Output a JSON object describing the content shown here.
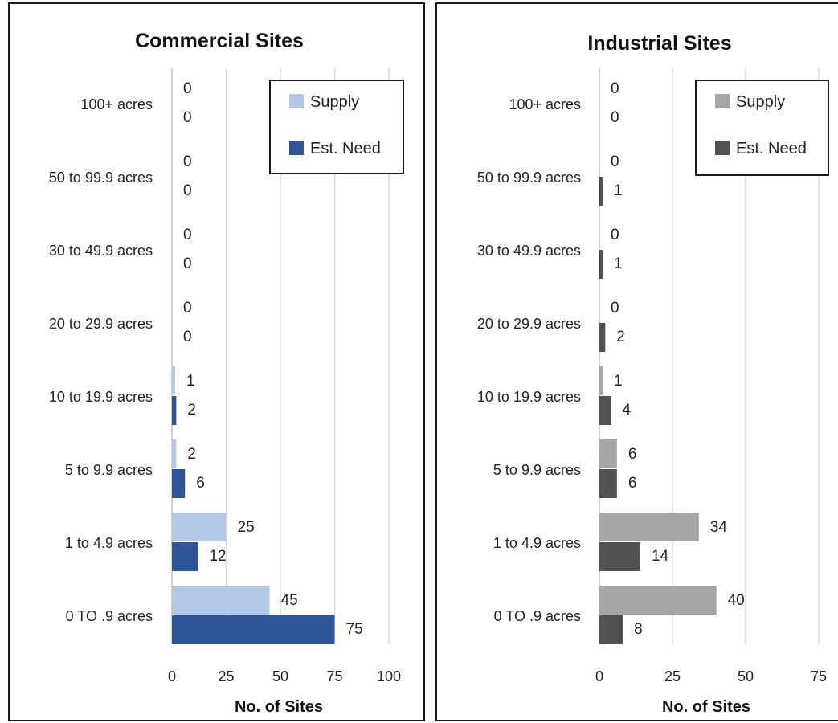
{
  "chart_data": [
    {
      "type": "bar",
      "orientation": "horizontal",
      "title": "Commercial Sites",
      "xlabel": "No. of Sites",
      "ylabel": "",
      "xlim": [
        0,
        100
      ],
      "xticks": [
        0,
        25,
        50,
        75,
        100
      ],
      "grid": true,
      "legend": "top-right",
      "categories": [
        "100+ acres",
        "50 to 99.9 acres",
        "30 to 49.9 acres",
        "20 to 29.9 acres",
        "10 to 19.9 acres",
        "5 to 9.9 acres",
        "1 to 4.9 acres",
        "0 TO .9 acres"
      ],
      "series": [
        {
          "name": "Supply",
          "color": "#b4c7e7",
          "values": [
            0,
            0,
            0,
            0,
            1,
            2,
            25,
            45
          ]
        },
        {
          "name": "Est. Need",
          "color": "#2f5597",
          "values": [
            0,
            0,
            0,
            0,
            2,
            6,
            12,
            75
          ]
        }
      ]
    },
    {
      "type": "bar",
      "orientation": "horizontal",
      "title": "Industrial Sites",
      "xlabel": "No. of Sites",
      "ylabel": "",
      "xlim": [
        0,
        75
      ],
      "xticks": [
        0,
        25,
        50,
        75
      ],
      "grid": true,
      "legend": "top-right",
      "categories": [
        "100+ acres",
        "50 to 99.9 acres",
        "30 to 49.9 acres",
        "20 to 29.9 acres",
        "10 to 19.9 acres",
        "5 to 9.9 acres",
        "1 to 4.9 acres",
        "0 TO .9 acres"
      ],
      "series": [
        {
          "name": "Supply",
          "color": "#a5a5a5",
          "values": [
            0,
            0,
            0,
            0,
            1,
            6,
            34,
            40
          ]
        },
        {
          "name": "Est. Need",
          "color": "#505050",
          "values": [
            0,
            1,
            1,
            2,
            4,
            6,
            14,
            8
          ]
        }
      ]
    }
  ]
}
